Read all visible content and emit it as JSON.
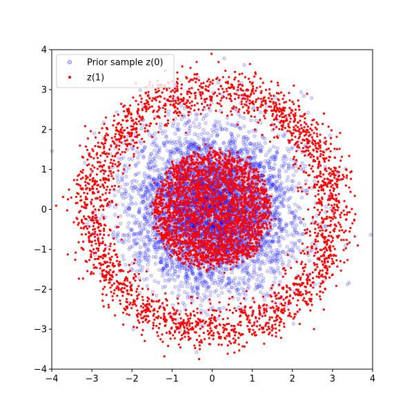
{
  "chart_data": {
    "type": "scatter",
    "xlim": [
      -4,
      4
    ],
    "ylim": [
      -4,
      4
    ],
    "x_ticks": [
      "−4",
      "−3",
      "−2",
      "−1",
      "0",
      "1",
      "2",
      "3",
      "4"
    ],
    "y_ticks": [
      "−4",
      "−3",
      "−2",
      "−1",
      "0",
      "1",
      "2",
      "3",
      "4"
    ],
    "grid": false,
    "legend_position": "top-left",
    "series": [
      {
        "name": "Prior sample z(0)",
        "color": "#0000ff",
        "marker": "circle-hollow-translucent",
        "distribution": "standard normal, centered at (0,0)",
        "approx_count": 5000,
        "points_sample": [
          [
            0.0,
            0.0
          ],
          [
            0.5,
            0.4
          ],
          [
            -0.6,
            0.2
          ],
          [
            1.2,
            -0.8
          ],
          [
            -1.4,
            1.1
          ],
          [
            2.1,
            0.7
          ],
          [
            -2.0,
            -1.2
          ],
          [
            0.3,
            -2.2
          ],
          [
            -0.2,
            2.4
          ],
          [
            2.6,
            -0.3
          ]
        ]
      },
      {
        "name": "z(1)",
        "color": "#ff0000",
        "marker": "circle-filled",
        "distribution": "inner disk of radius ~1.5 plus ring at radius ~3",
        "approx_count": 5000,
        "points_sample": [
          [
            0.1,
            0.2
          ],
          [
            -0.9,
            0.6
          ],
          [
            1.0,
            -0.9
          ],
          [
            0.0,
            3.0
          ],
          [
            3.0,
            0.0
          ],
          [
            -3.0,
            0.1
          ],
          [
            0.0,
            -3.0
          ],
          [
            2.1,
            2.1
          ],
          [
            -2.1,
            -2.1
          ],
          [
            2.1,
            -2.1
          ],
          [
            -2.1,
            2.1
          ]
        ]
      }
    ]
  }
}
